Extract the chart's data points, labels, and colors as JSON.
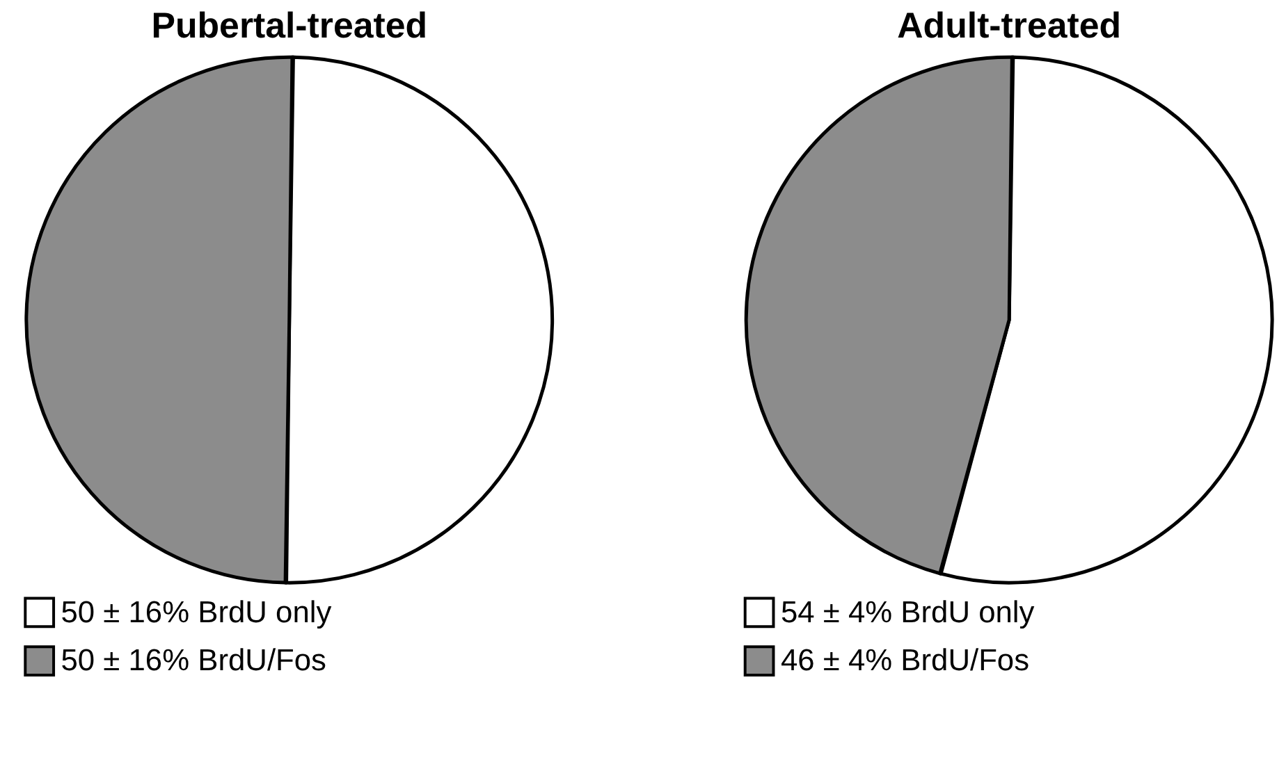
{
  "chart_data": [
    {
      "type": "pie",
      "title": "Pubertal-treated",
      "categories": [
        "50 ± 16% BrdU only",
        "50 ± 16% BrdU/Fos"
      ],
      "values": [
        50,
        50
      ],
      "colors": [
        "#ffffff",
        "#8c8c8c"
      ],
      "legend": "bottom left"
    },
    {
      "type": "pie",
      "title": "Adult-treated",
      "categories": [
        "54 ± 4% BrdU only",
        "46 ± 4% BrdU/Fos"
      ],
      "values": [
        54,
        46
      ],
      "colors": [
        "#ffffff",
        "#8c8c8c"
      ],
      "legend": "bottom left"
    }
  ]
}
